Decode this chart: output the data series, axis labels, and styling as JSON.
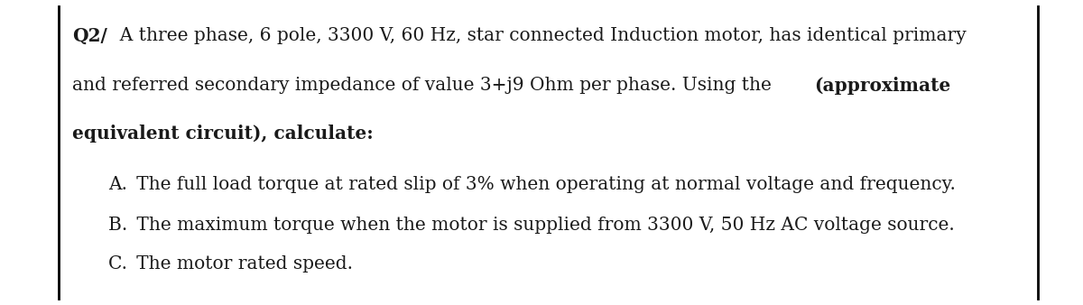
{
  "bg_color": "#ffffff",
  "border_color": "#000000",
  "text_color": "#1a1a1a",
  "q2_bold": "Q2/",
  "line1_rest": "  A three phase, 6 pole, 3300 V, 60 Hz, star connected Induction motor, has identical primary",
  "line2_normal": "and referred secondary impedance of value 3+j9 Ohm per phase. Using the ",
  "line2_bold": "(approximate",
  "line3_bold": "equivalent circuit), calculate:",
  "line_A": "A. The full load torque at rated slip of 3% when operating at normal voltage and frequency.",
  "line_B": "B. The maximum torque when the motor is supplied from 3300 V, 50 Hz AC voltage source.",
  "line_C": "C. The motor rated speed.",
  "font_size": 14.5,
  "figwidth": 12.0,
  "figheight": 3.38,
  "dpi": 100
}
